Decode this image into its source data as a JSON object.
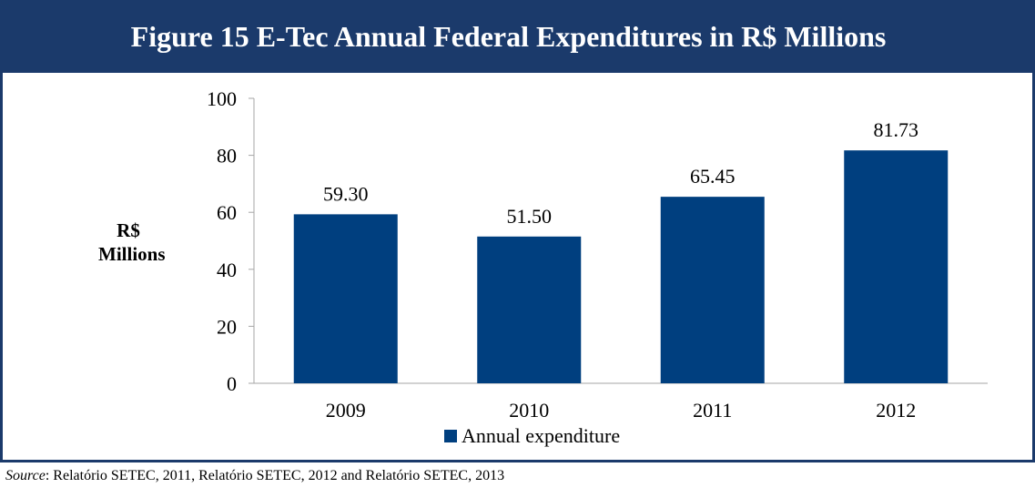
{
  "header": {
    "title": "Figure 15 E-Tec Annual Federal Expenditures in R$ Millions"
  },
  "source": {
    "label": "Source",
    "separator": ":",
    "text": " Relatório SETEC, 2011, Relatório SETEC, 2012 and Relatório SETEC, 2013"
  },
  "chart_data": {
    "type": "bar",
    "title": "Figure 15 E-Tec Annual Federal Expenditures in R$ Millions",
    "categories": [
      "2009",
      "2010",
      "2011",
      "2012"
    ],
    "series": [
      {
        "name": "Annual expenditure",
        "values": [
          59.3,
          51.5,
          65.45,
          81.73
        ],
        "color": "#003f7f"
      }
    ],
    "data_labels": [
      "59.30",
      "51.50",
      "65.45",
      "81.73"
    ],
    "ylabel_lines": [
      "R$",
      "Millions"
    ],
    "xlabel": "",
    "ylim": [
      0,
      100
    ],
    "yticks": [
      0,
      20,
      40,
      60,
      80,
      100
    ],
    "grid": false,
    "legend_position": "bottom"
  }
}
